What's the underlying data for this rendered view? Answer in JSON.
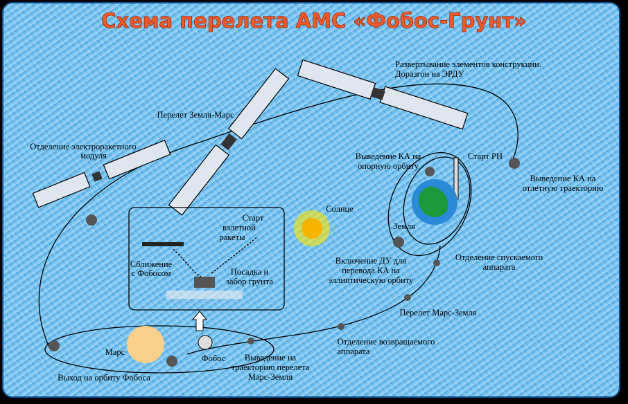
{
  "title": "Схема перелета АМС «Фобос-Грунт»",
  "labels": [
    [
      "Развертывание элементов конструкции.",
      "Доразгон на ЭРДУ"
    ],
    [
      "Перелет Земля-Марс"
    ],
    [
      "Отделение электроракетного",
      "модуля"
    ],
    [
      "Выведение КА на",
      "опорную орбиту"
    ],
    [
      "Старт РН"
    ],
    [
      "Выведение КА на",
      "отлетную траекторию"
    ],
    [
      "Солнце"
    ],
    [
      "Земля"
    ],
    [
      "Старт",
      "взлетной",
      "ракеты"
    ],
    [
      "Сближение",
      "с Фобосом"
    ],
    [
      "Посадка и",
      "забор грунта"
    ],
    [
      "Включение ДУ для",
      "перевода КА на",
      "эллиптическую орбиту"
    ],
    [
      "Отделение спускаемого",
      "аппарата"
    ],
    [
      "Перелет Марс-Земля"
    ],
    [
      "Отделение возвращаемого",
      "аппарата"
    ],
    [
      "Выведение на",
      "траекторию перелета",
      "Марс-Земля"
    ],
    [
      "Марс"
    ],
    [
      "Фобос"
    ],
    [
      "Выход на орбиту Фобоса"
    ]
  ]
}
